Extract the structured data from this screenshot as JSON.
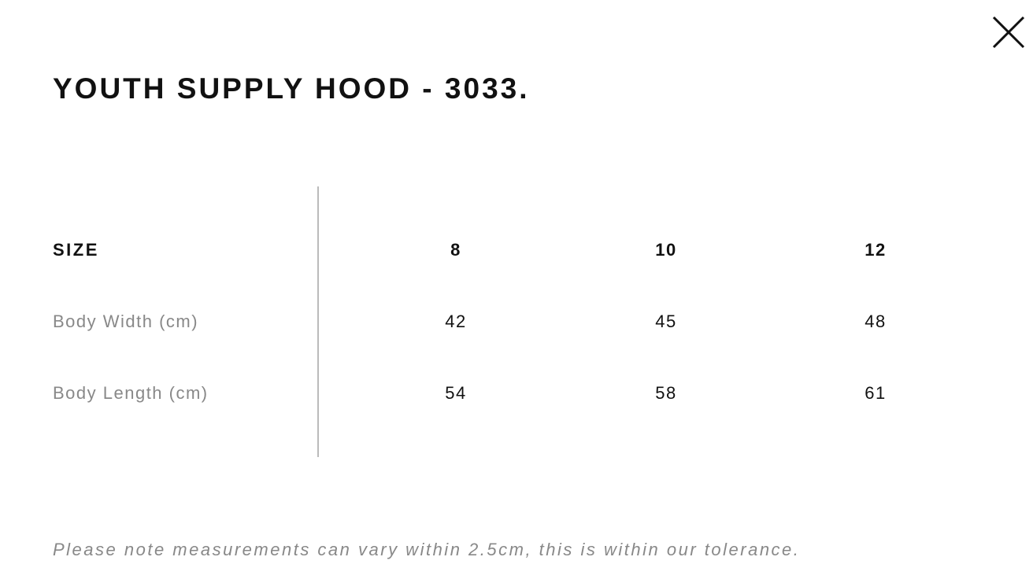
{
  "title": "YOUTH SUPPLY HOOD - 3033.",
  "close_icon": "close-x-icon",
  "table": {
    "header": {
      "label": "SIZE",
      "values": [
        "8",
        "10",
        "12"
      ]
    },
    "rows": [
      {
        "label": "Body Width (cm)",
        "values": [
          "42",
          "45",
          "48"
        ]
      },
      {
        "label": "Body Length (cm)",
        "values": [
          "54",
          "58",
          "61"
        ]
      }
    ]
  },
  "note": "Please note measurements can vary within 2.5cm, this is within our tolerance."
}
